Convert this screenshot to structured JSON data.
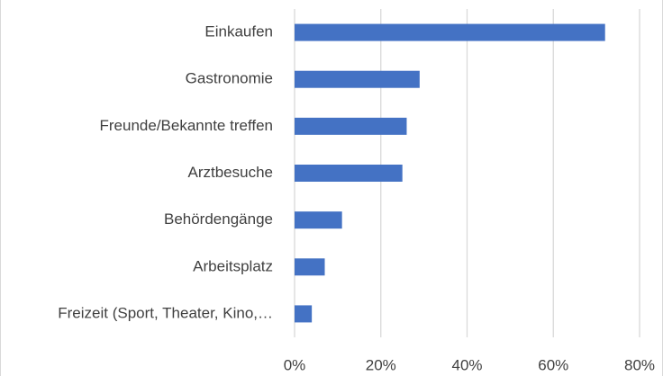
{
  "chart_data": {
    "type": "bar",
    "orientation": "horizontal",
    "categories": [
      "Einkaufen",
      "Gastronomie",
      "Freunde/Bekannte treffen",
      "Arztbesuche",
      "Behördengänge",
      "Arbeitsplatz",
      "Freizeit (Sport, Theater, Kino,…"
    ],
    "values": [
      72,
      29,
      26,
      25,
      11,
      7,
      4
    ],
    "color": "#4472c4",
    "xlim": [
      0,
      80
    ],
    "xticks": [
      {
        "value": 0,
        "label": "0%"
      },
      {
        "value": 20,
        "label": "20%"
      },
      {
        "value": 40,
        "label": "40%"
      },
      {
        "value": 60,
        "label": "60%"
      },
      {
        "value": 80,
        "label": "80%"
      }
    ],
    "grid": true
  }
}
